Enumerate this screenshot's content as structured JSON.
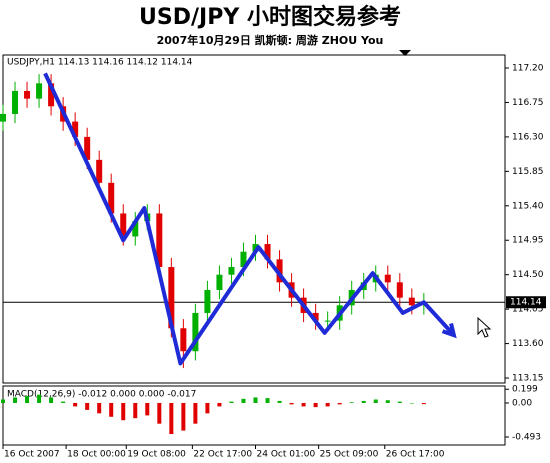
{
  "chart_data": {
    "type": "candlestick",
    "title": "USD/JPY  小时图交易参考",
    "subtitle": "2007年10月29日  凯斯顿: 周游 ZHOU You",
    "info": "USDJPY,H1  114.13 114.16 114.12 114.14",
    "x": [
      0,
      4,
      8,
      12,
      16,
      20,
      24,
      28,
      32,
      36,
      40,
      44,
      48,
      52,
      56,
      60,
      64,
      68,
      72,
      76,
      80,
      84,
      88,
      92,
      96,
      100,
      104,
      108,
      112,
      116,
      120,
      124,
      128,
      132,
      136,
      140
    ],
    "open": [
      116.5,
      116.6,
      116.9,
      116.8,
      117.0,
      116.7,
      116.5,
      116.3,
      116.0,
      115.7,
      115.3,
      115.0,
      115.2,
      115.3,
      114.6,
      113.8,
      113.5,
      114.0,
      114.3,
      114.5,
      114.6,
      114.8,
      114.9,
      114.7,
      114.4,
      114.2,
      114.0,
      113.9,
      113.9,
      114.1,
      114.3,
      114.4,
      114.5,
      114.4,
      114.2,
      114.1
    ],
    "high": [
      116.72,
      117.02,
      117.02,
      117.12,
      117.12,
      116.82,
      116.62,
      116.42,
      116.12,
      115.82,
      115.42,
      115.32,
      115.42,
      115.42,
      114.72,
      113.92,
      114.12,
      114.42,
      114.62,
      114.72,
      114.92,
      115.02,
      115.02,
      114.82,
      114.52,
      114.32,
      114.12,
      114.02,
      114.22,
      114.42,
      114.52,
      114.62,
      114.62,
      114.52,
      114.32,
      114.26
    ],
    "low": [
      116.38,
      116.48,
      116.68,
      116.68,
      116.58,
      116.38,
      116.18,
      115.88,
      115.58,
      115.18,
      114.88,
      114.88,
      115.08,
      114.48,
      113.68,
      113.28,
      113.38,
      113.88,
      114.18,
      114.38,
      114.48,
      114.68,
      114.58,
      114.28,
      114.08,
      113.88,
      113.78,
      113.78,
      113.78,
      113.98,
      114.18,
      114.28,
      114.28,
      114.08,
      113.98,
      113.98
    ],
    "close": [
      116.6,
      116.9,
      116.8,
      117.0,
      116.7,
      116.5,
      116.3,
      116.0,
      115.7,
      115.3,
      115.0,
      115.2,
      115.3,
      114.6,
      113.8,
      113.5,
      114.0,
      114.3,
      114.5,
      114.6,
      114.8,
      114.9,
      114.7,
      114.4,
      114.2,
      114.0,
      113.9,
      113.9,
      114.1,
      114.3,
      114.4,
      114.5,
      114.4,
      114.2,
      114.1,
      114.14
    ],
    "up_color": "#00b000",
    "down_color": "#e00000",
    "xlim": [
      0,
      167
    ],
    "xticks": [
      {
        "value": 0,
        "label": "16 Oct 2007"
      },
      {
        "value": 21,
        "label": "18 Oct 00:00"
      },
      {
        "value": 41,
        "label": "19 Oct 08:00"
      },
      {
        "value": 63,
        "label": "22 Oct 17:00"
      },
      {
        "value": 84,
        "label": "24 Oct 01:00"
      },
      {
        "value": 105,
        "label": "25 Oct 09:00"
      },
      {
        "value": 127,
        "label": "26 Oct 17:00"
      }
    ],
    "ylim": [
      113.085,
      117.37
    ],
    "yticks": [
      {
        "value": 117.2,
        "label": "117.20"
      },
      116.75,
      {
        "value": 116.3,
        "label": "116.30"
      },
      115.85,
      {
        "value": 115.4,
        "label": "115.40"
      },
      114.95,
      {
        "value": 114.5,
        "label": "114.50"
      },
      114.05,
      {
        "value": 113.6,
        "label": "113.60"
      },
      113.15
    ],
    "current_price": 114.14,
    "trend_line": {
      "color": "#1e2bd6",
      "x": [
        14,
        40,
        47,
        59,
        85,
        107,
        123,
        133,
        140,
        150
      ],
      "values": [
        117.13,
        114.95,
        115.37,
        113.34,
        114.86,
        113.74,
        114.52,
        114.0,
        114.14,
        113.71
      ]
    },
    "macd": {
      "label": "MACD(12,26,9) -0.012 0.000 0.000 -0.017",
      "values": [
        0.05,
        0.08,
        0.1,
        0.12,
        0.08,
        0.02,
        -0.05,
        -0.1,
        -0.15,
        -0.2,
        -0.25,
        -0.22,
        -0.18,
        -0.3,
        -0.45,
        -0.4,
        -0.3,
        -0.15,
        -0.05,
        0.02,
        0.06,
        0.08,
        0.07,
        0.03,
        -0.02,
        -0.05,
        -0.06,
        -0.05,
        -0.02,
        0.01,
        0.03,
        0.05,
        0.04,
        0.02,
        0.0,
        -0.017
      ],
      "up_color": "#00b000",
      "down_color": "#e00000",
      "y2lim": [
        -0.609,
        0.246
      ],
      "y2ticks": [
        0.199,
        {
          "value": 0,
          "label": "0.00"
        },
        -0.493
      ]
    }
  }
}
